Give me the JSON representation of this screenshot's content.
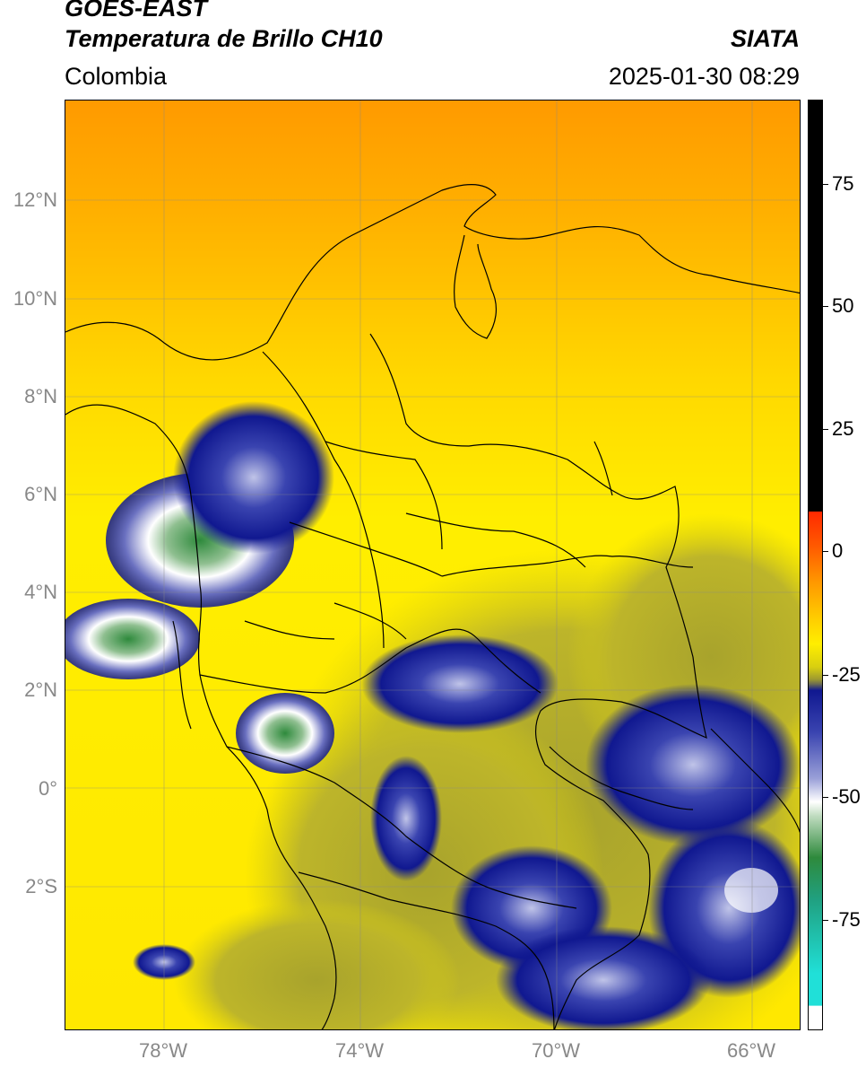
{
  "header": {
    "satellite": "GOES-EAST",
    "product": "Temperatura de Brillo CH10",
    "organization": "SIATA",
    "region": "Colombia",
    "datetime": "2025-01-30 08:29"
  },
  "map": {
    "lat_labels": [
      "12°N",
      "10°N",
      "8°N",
      "6°N",
      "4°N",
      "2°N",
      "0°",
      "2°S"
    ],
    "lon_labels": [
      "78°W",
      "74°W",
      "70°W",
      "66°W"
    ],
    "gridlines": true
  },
  "colorbar": {
    "tick_labels": [
      "75",
      "50",
      "25",
      "0",
      "-25",
      "-50",
      "-75"
    ],
    "colors": {
      "black": "#000000",
      "red": "#ff2a00",
      "orange": "#ff9a00",
      "yellow": "#ffee00",
      "olive": "#b0ad2a",
      "navy": "#101890",
      "white": "#ffffff",
      "green": "#2e8a3c",
      "cyan": "#20e0d8"
    }
  }
}
